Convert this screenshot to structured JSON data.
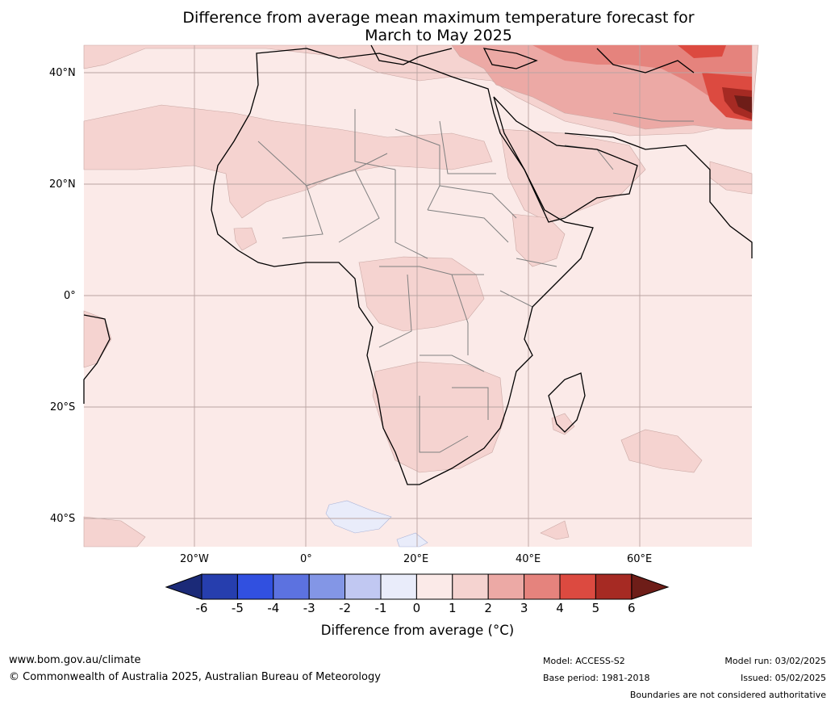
{
  "title": {
    "line1": "Difference from average mean maximum temperature forecast for",
    "line2": "March to May 2025"
  },
  "map": {
    "region": "Africa",
    "lat_ticks": [
      "40°N",
      "20°N",
      "0°",
      "20°S",
      "40°S"
    ],
    "lon_ticks": [
      "20°W",
      "0°",
      "20°E",
      "40°E",
      "60°E"
    ],
    "background_class_color": "#fbeae8"
  },
  "colorbar": {
    "label": "Difference from average (°C)",
    "ticks": [
      "-6",
      "-5",
      "-4",
      "-3",
      "-2",
      "-1",
      "0",
      "1",
      "2",
      "3",
      "4",
      "5",
      "6"
    ],
    "colors": [
      "#1b2a78",
      "#263eae",
      "#3150e0",
      "#5c72e0",
      "#8396e6",
      "#c1c8f2",
      "#e9ecfa",
      "#fbeae8",
      "#f5d3d0",
      "#eca9a5",
      "#e5837d",
      "#dc4a40",
      "#a62a23",
      "#6e1d18"
    ]
  },
  "footer": {
    "website": "www.bom.gov.au/climate",
    "copyright": "© Commonwealth of Australia 2025, Australian Bureau of Meteorology",
    "model": "Model: ACCESS-S2",
    "base_period": "Base period: 1981-2018",
    "model_run": "Model run: 03/02/2025",
    "issued": "Issued: 05/02/2025",
    "disclaimer": "Boundaries are not considered authoritative"
  }
}
